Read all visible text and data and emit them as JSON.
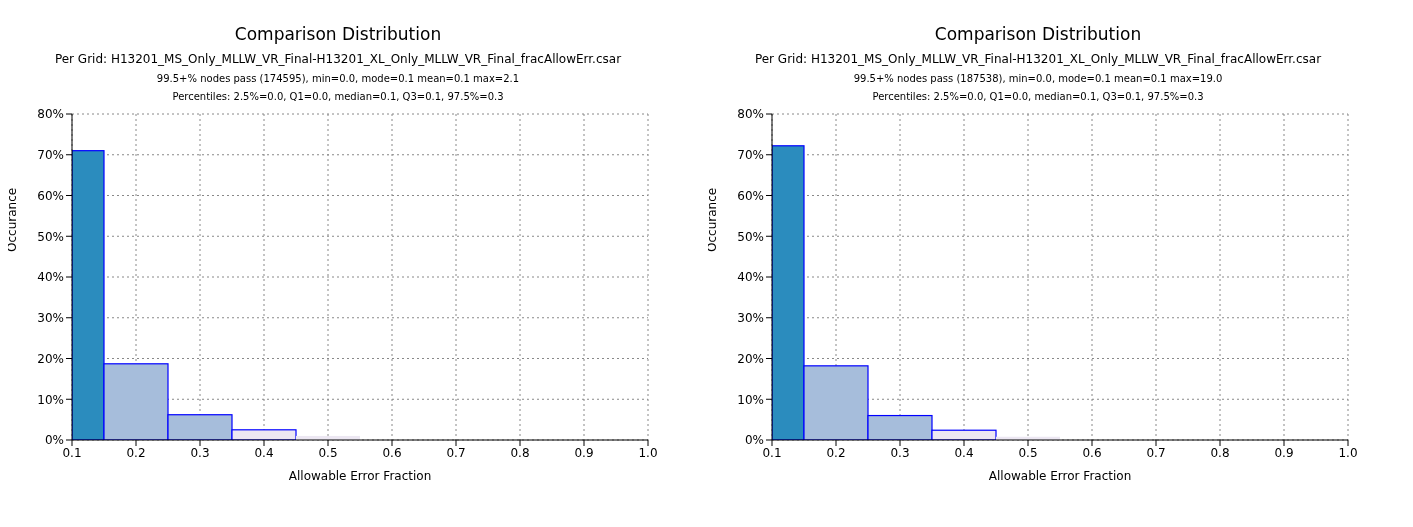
{
  "chart_data": [
    {
      "type": "histogram",
      "title": "Comparison Distribution",
      "subtitle": "Per Grid: H13201_MS_Only_MLLW_VR_Final-H13201_XL_Only_MLLW_VR_Final_fracAllowErr.csar",
      "annotations": [
        "99.5+% nodes pass (174595), min=0.0, mode=0.1 mean=0.1 max=2.1",
        "Percentiles: 2.5%=0.0, Q1=0.0, median=0.1, Q3=0.1, 97.5%=0.3"
      ],
      "xlabel": "Allowable Error Fraction",
      "ylabel": "Occurance",
      "bins": [
        0.1,
        0.15,
        0.25,
        0.35,
        0.45,
        0.55
      ],
      "values": [
        71,
        18.7,
        6.2,
        2.5,
        1.0
      ],
      "colors": [
        "#2b8cbe",
        "#a6bddb",
        "#a6bddb",
        "#ece7f2",
        "#ece7f2"
      ],
      "xlim": [
        0.1,
        1.0
      ],
      "xticks": [
        {
          "value": 0.1,
          "label": "0.1"
        },
        {
          "value": 0.2,
          "label": "0.2"
        },
        {
          "value": 0.3,
          "label": "0.3"
        },
        {
          "value": 0.4,
          "label": "0.4"
        },
        {
          "value": 0.5,
          "label": "0.5"
        },
        {
          "value": 0.6,
          "label": "0.6"
        },
        {
          "value": 0.7,
          "label": "0.7"
        },
        {
          "value": 0.8,
          "label": "0.8"
        },
        {
          "value": 0.9,
          "label": "0.9"
        },
        {
          "value": 1.0,
          "label": "1.0"
        }
      ],
      "ylim": [
        0,
        80
      ],
      "yticks": [
        {
          "value": 0,
          "label": "0%"
        },
        {
          "value": 10,
          "label": "10%"
        },
        {
          "value": 20,
          "label": "20%"
        },
        {
          "value": 30,
          "label": "30%"
        },
        {
          "value": 40,
          "label": "40%"
        },
        {
          "value": 50,
          "label": "50%"
        },
        {
          "value": 60,
          "label": "60%"
        },
        {
          "value": 70,
          "label": "70%"
        },
        {
          "value": 80,
          "label": "80%"
        }
      ],
      "grid": true
    },
    {
      "type": "histogram",
      "title": "Comparison Distribution",
      "subtitle": "Per Grid: H13201_MS_Only_MLLW_VR_Final-H13201_XL_Only_MLLW_VR_Final_fracAllowErr.csar",
      "annotations": [
        "99.5+% nodes pass (187538), min=0.0, mode=0.1 mean=0.1 max=19.0",
        "Percentiles: 2.5%=0.0, Q1=0.0, median=0.1, Q3=0.1, 97.5%=0.3"
      ],
      "xlabel": "Allowable Error Fraction",
      "ylabel": "Occurance",
      "bins": [
        0.1,
        0.15,
        0.25,
        0.35,
        0.45,
        0.55
      ],
      "values": [
        72.2,
        18.2,
        6.0,
        2.4,
        0.8
      ],
      "colors": [
        "#2b8cbe",
        "#a6bddb",
        "#a6bddb",
        "#ece7f2",
        "#ece7f2"
      ],
      "xlim": [
        0.1,
        1.0
      ],
      "xticks": [
        {
          "value": 0.1,
          "label": "0.1"
        },
        {
          "value": 0.2,
          "label": "0.2"
        },
        {
          "value": 0.3,
          "label": "0.3"
        },
        {
          "value": 0.4,
          "label": "0.4"
        },
        {
          "value": 0.5,
          "label": "0.5"
        },
        {
          "value": 0.6,
          "label": "0.6"
        },
        {
          "value": 0.7,
          "label": "0.7"
        },
        {
          "value": 0.8,
          "label": "0.8"
        },
        {
          "value": 0.9,
          "label": "0.9"
        },
        {
          "value": 1.0,
          "label": "1.0"
        }
      ],
      "ylim": [
        0,
        80
      ],
      "yticks": [
        {
          "value": 0,
          "label": "0%"
        },
        {
          "value": 10,
          "label": "10%"
        },
        {
          "value": 20,
          "label": "20%"
        },
        {
          "value": 30,
          "label": "30%"
        },
        {
          "value": 40,
          "label": "40%"
        },
        {
          "value": 50,
          "label": "50%"
        },
        {
          "value": 60,
          "label": "60%"
        },
        {
          "value": 70,
          "label": "70%"
        },
        {
          "value": 80,
          "label": "80%"
        }
      ],
      "grid": true
    }
  ]
}
